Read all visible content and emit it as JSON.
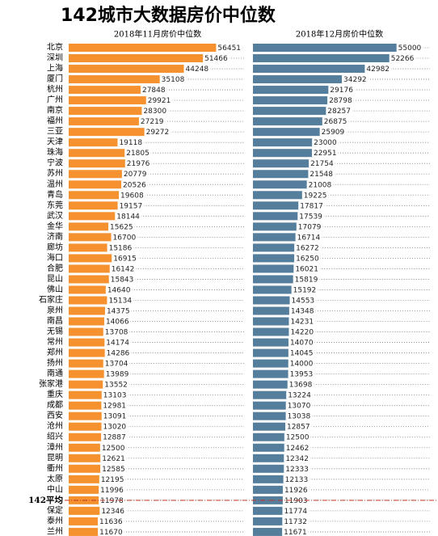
{
  "chart_data": {
    "type": "bar",
    "title": "142城市大数据房价中位数",
    "categories": [
      "北京",
      "深圳",
      "上海",
      "厦门",
      "杭州",
      "广州",
      "南京",
      "福州",
      "三亚",
      "天津",
      "珠海",
      "宁波",
      "苏州",
      "温州",
      "青岛",
      "东莞",
      "武汉",
      "金华",
      "济南",
      "廊坊",
      "海口",
      "合肥",
      "昆山",
      "佛山",
      "石家庄",
      "泉州",
      "南昌",
      "无锡",
      "常州",
      "郑州",
      "扬州",
      "南通",
      "张家港",
      "重庆",
      "成都",
      "西安",
      "沧州",
      "绍兴",
      "漳州",
      "昆明",
      "衢州",
      "太原",
      "中山",
      "142平均",
      "保定",
      "泰州",
      "兰州"
    ],
    "series": [
      {
        "name": "2018年11月房价中位数",
        "color": "#f5922f",
        "values": [
          56451,
          51466,
          44248,
          35108,
          27848,
          29921,
          28300,
          27219,
          29272,
          19118,
          21805,
          21976,
          20779,
          20526,
          19608,
          19157,
          18144,
          15625,
          16700,
          15186,
          16915,
          16142,
          15843,
          14640,
          15134,
          14375,
          14066,
          13708,
          14174,
          14286,
          13704,
          13989,
          13552,
          13103,
          12981,
          13091,
          13020,
          12887,
          12500,
          12621,
          12585,
          12195,
          11996,
          11978,
          12346,
          11636,
          11670
        ]
      },
      {
        "name": "2018年12月房价中位数",
        "color": "#557d9c",
        "values": [
          55000,
          52266,
          42982,
          34292,
          29176,
          28798,
          28257,
          26875,
          25909,
          23000,
          22951,
          21754,
          21548,
          21008,
          19225,
          17817,
          17539,
          17079,
          16714,
          16272,
          16250,
          16021,
          15819,
          15192,
          14553,
          14348,
          14231,
          14220,
          14070,
          14045,
          14000,
          13953,
          13698,
          13224,
          13070,
          13038,
          12857,
          12500,
          12462,
          12342,
          12333,
          12133,
          11926,
          11903,
          11774,
          11732,
          11671
        ]
      }
    ],
    "xlim": [
      0,
      60000
    ],
    "highlight_row": 43,
    "highlight_color": "#c0392b"
  }
}
